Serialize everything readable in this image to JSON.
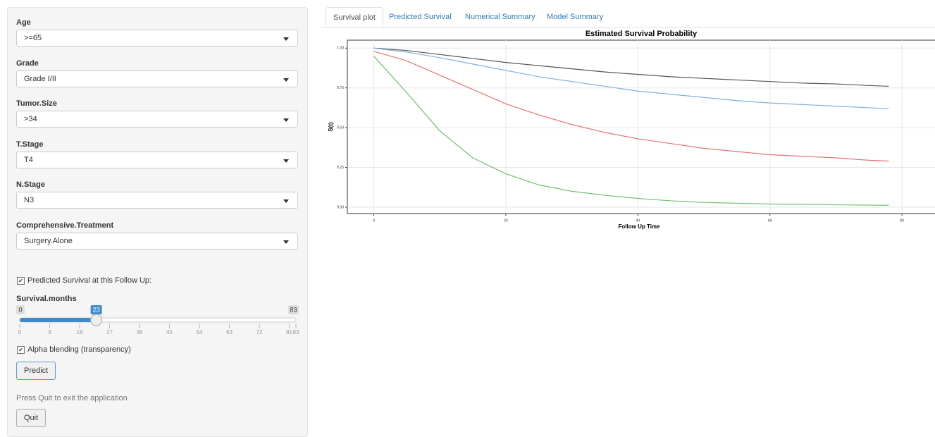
{
  "sidebar": {
    "fields": [
      {
        "label": "Age",
        "value": ">=65"
      },
      {
        "label": "Grade",
        "value": "Grade I/II"
      },
      {
        "label": "Tumor.Size",
        "value": ">34"
      },
      {
        "label": "T.Stage",
        "value": "T4"
      },
      {
        "label": "N.Stage",
        "value": "N3"
      },
      {
        "label": "Comprehensive.Treatment",
        "value": "Surgery.Alone"
      }
    ],
    "predicted_checkbox": "Predicted Survival at this Follow Up:",
    "slider": {
      "label": "Survival.months",
      "min": 0,
      "max": 83,
      "value": 23,
      "ticks": [
        0,
        9,
        18,
        27,
        36,
        45,
        54,
        63,
        72,
        81,
        83
      ]
    },
    "alpha_checkbox": "Alpha blending (transparency)",
    "predict_button": "Predict",
    "quit_note": "Press Quit to exit the application",
    "quit_button": "Quit"
  },
  "tabs": [
    "Survival plot",
    "Predicted Survival",
    "Numerical Summary",
    "Model Summary"
  ],
  "chart_data": {
    "type": "line",
    "title": "Estimated Survival Probability",
    "x_label": "Follow Up Time",
    "y_label": "S(t)",
    "x": [
      0,
      5,
      10,
      15,
      20,
      25,
      30,
      35,
      40,
      45,
      50,
      55,
      60,
      65,
      70,
      75,
      78
    ],
    "series": [
      {
        "color": "#555555",
        "values": [
          1.0,
          0.985,
          0.96,
          0.935,
          0.91,
          0.89,
          0.87,
          0.85,
          0.835,
          0.82,
          0.81,
          0.8,
          0.79,
          0.78,
          0.775,
          0.765,
          0.76
        ]
      },
      {
        "color": "#7fb0e0",
        "values": [
          1.0,
          0.975,
          0.94,
          0.9,
          0.86,
          0.82,
          0.79,
          0.76,
          0.73,
          0.71,
          0.69,
          0.67,
          0.655,
          0.645,
          0.635,
          0.625,
          0.62
        ]
      },
      {
        "color": "#e87272",
        "values": [
          0.98,
          0.92,
          0.83,
          0.74,
          0.65,
          0.58,
          0.52,
          0.47,
          0.43,
          0.4,
          0.37,
          0.35,
          0.33,
          0.32,
          0.31,
          0.295,
          0.29
        ]
      },
      {
        "color": "#6cbf6c",
        "values": [
          0.95,
          0.72,
          0.48,
          0.31,
          0.21,
          0.14,
          0.1,
          0.075,
          0.055,
          0.04,
          0.03,
          0.025,
          0.02,
          0.018,
          0.015,
          0.013,
          0.012
        ]
      }
    ],
    "xlim": [
      -4,
      85
    ],
    "ylim": [
      -0.04,
      1.05
    ],
    "xticks": [
      0,
      20,
      40,
      60,
      80
    ],
    "yticks": [
      {
        "value": 0,
        "label": "0.00"
      },
      {
        "value": 0.25,
        "label": "0.25"
      },
      {
        "value": 0.5,
        "label": "0.50"
      },
      {
        "value": 0.75,
        "label": "0.75"
      },
      {
        "value": 1,
        "label": "1.00"
      }
    ],
    "grid": true
  }
}
